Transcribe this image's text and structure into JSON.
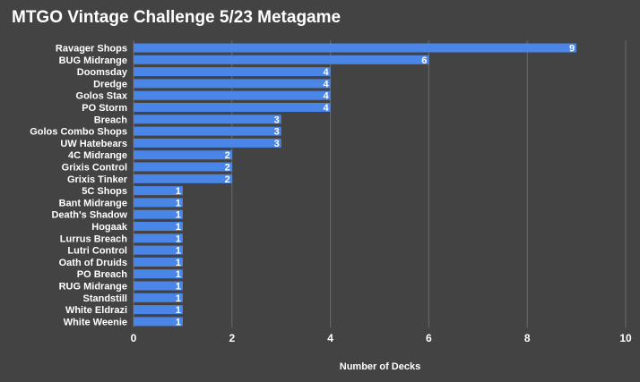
{
  "colors": {
    "background": "#434343",
    "bar": "#4a86e8",
    "gridline": "#6b6b6b",
    "text": "#ffffff"
  },
  "chart_data": {
    "type": "bar",
    "orientation": "horizontal",
    "title": "MTGO Vintage Challenge 5/23 Metagame",
    "xlabel": "Number of Decks",
    "ylabel": "",
    "xlim": [
      0,
      10
    ],
    "x_ticks": [
      0,
      2,
      4,
      6,
      8,
      10
    ],
    "grid": true,
    "legend": "none",
    "categories": [
      "Ravager Shops",
      "BUG Midrange",
      "Doomsday",
      "Dredge",
      "Golos Stax",
      "PO Storm",
      "Breach",
      "Golos Combo Shops",
      "UW Hatebears",
      "4C Midrange",
      "Grixis Control",
      "Grixis Tinker",
      "5C Shops",
      "Bant Midrange",
      "Death's Shadow",
      "Hogaak",
      "Lurrus Breach",
      "Lutri Control",
      "Oath of Druids",
      "PO Breach",
      "RUG Midrange",
      "Standstill",
      "White Eldrazi",
      "White Weenie"
    ],
    "values": [
      9,
      6,
      4,
      4,
      4,
      4,
      3,
      3,
      3,
      2,
      2,
      2,
      1,
      1,
      1,
      1,
      1,
      1,
      1,
      1,
      1,
      1,
      1,
      1
    ]
  }
}
